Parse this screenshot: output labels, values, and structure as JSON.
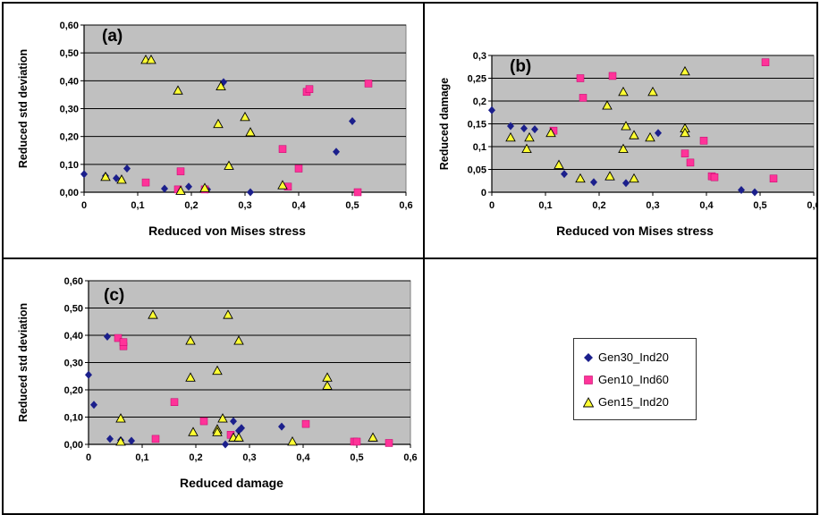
{
  "panels": [
    {
      "id": "a",
      "label": "(a)",
      "xlabel": "Reduced von Mises stress",
      "ylabel": "Reduced std deviation",
      "xticks": [
        "0",
        "0,1",
        "0,2",
        "0,3",
        "0,4",
        "0,5",
        "0,6"
      ],
      "yticks": [
        "0,00",
        "0,10",
        "0,20",
        "0,30",
        "0,40",
        "0,50",
        "0,60"
      ]
    },
    {
      "id": "b",
      "label": "(b)",
      "xlabel": "Reduced von Mises stress",
      "ylabel": "Reduced damage",
      "xticks": [
        "0",
        "0,1",
        "0,2",
        "0,3",
        "0,4",
        "0,5",
        "0,6"
      ],
      "yticks": [
        "0",
        "0,05",
        "0,1",
        "0,15",
        "0,2",
        "0,25",
        "0,3"
      ]
    },
    {
      "id": "c",
      "label": "(c)",
      "xlabel": "Reduced damage",
      "ylabel": "Reduced std deviation",
      "xticks": [
        "0",
        "0,1",
        "0,2",
        "0,3",
        "0,4",
        "0,5",
        "0,6"
      ],
      "yticks": [
        "0,00",
        "0,10",
        "0,20",
        "0,30",
        "0,40",
        "0,50",
        "0,60"
      ]
    }
  ],
  "legend": {
    "entries": [
      {
        "name": "Gen30_Ind20",
        "marker": "diamond",
        "color": "#1b1f8c"
      },
      {
        "name": "Gen10_Ind60",
        "marker": "square",
        "color": "#ff3399"
      },
      {
        "name": "Gen15_Ind20",
        "marker": "triangle",
        "color": "#ffff33"
      }
    ]
  },
  "chart_data": [
    {
      "type": "scatter",
      "panel": "a",
      "title": "",
      "xlabel": "Reduced von Mises stress",
      "ylabel": "Reduced std deviation",
      "xlim": [
        0,
        0.6
      ],
      "ylim": [
        0,
        0.6
      ],
      "grid": true,
      "series": [
        {
          "name": "Gen30_Ind20",
          "points": [
            [
              0,
              0.065
            ],
            [
              0.04,
              0.058
            ],
            [
              0.06,
              0.05
            ],
            [
              0.08,
              0.085
            ],
            [
              0.15,
              0.013
            ],
            [
              0.195,
              0.02
            ],
            [
              0.23,
              0.01
            ],
            [
              0.26,
              0.395
            ],
            [
              0.31,
              0.0
            ],
            [
              0.47,
              0.145
            ],
            [
              0.5,
              0.255
            ]
          ]
        },
        {
          "name": "Gen10_Ind60",
          "points": [
            [
              0.115,
              0.035
            ],
            [
              0.175,
              0.01
            ],
            [
              0.18,
              0.075
            ],
            [
              0.225,
              0.01
            ],
            [
              0.37,
              0.155
            ],
            [
              0.38,
              0.02
            ],
            [
              0.4,
              0.085
            ],
            [
              0.415,
              0.36
            ],
            [
              0.42,
              0.37
            ],
            [
              0.51,
              0.0
            ],
            [
              0.53,
              0.39
            ]
          ]
        },
        {
          "name": "Gen15_Ind20",
          "points": [
            [
              0.04,
              0.055
            ],
            [
              0.07,
              0.045
            ],
            [
              0.115,
              0.475
            ],
            [
              0.125,
              0.475
            ],
            [
              0.175,
              0.365
            ],
            [
              0.18,
              0.005
            ],
            [
              0.225,
              0.015
            ],
            [
              0.25,
              0.245
            ],
            [
              0.255,
              0.38
            ],
            [
              0.27,
              0.095
            ],
            [
              0.3,
              0.27
            ],
            [
              0.31,
              0.215
            ],
            [
              0.37,
              0.025
            ]
          ]
        }
      ]
    },
    {
      "type": "scatter",
      "panel": "b",
      "title": "",
      "xlabel": "Reduced von Mises stress",
      "ylabel": "Reduced damage",
      "xlim": [
        0,
        0.6
      ],
      "ylim": [
        0,
        0.3
      ],
      "grid": true,
      "series": [
        {
          "name": "Gen30_Ind20",
          "points": [
            [
              0,
              0.18
            ],
            [
              0.035,
              0.145
            ],
            [
              0.06,
              0.14
            ],
            [
              0.08,
              0.138
            ],
            [
              0.135,
              0.04
            ],
            [
              0.19,
              0.022
            ],
            [
              0.25,
              0.02
            ],
            [
              0.31,
              0.13
            ],
            [
              0.465,
              0.005
            ],
            [
              0.49,
              0.0
            ]
          ]
        },
        {
          "name": "Gen10_Ind60",
          "points": [
            [
              0.115,
              0.135
            ],
            [
              0.165,
              0.25
            ],
            [
              0.17,
              0.207
            ],
            [
              0.225,
              0.255
            ],
            [
              0.36,
              0.085
            ],
            [
              0.37,
              0.065
            ],
            [
              0.395,
              0.113
            ],
            [
              0.41,
              0.035
            ],
            [
              0.415,
              0.033
            ],
            [
              0.51,
              0.285
            ],
            [
              0.525,
              0.03
            ]
          ]
        },
        {
          "name": "Gen15_Ind20",
          "points": [
            [
              0.035,
              0.12
            ],
            [
              0.065,
              0.095
            ],
            [
              0.07,
              0.12
            ],
            [
              0.11,
              0.13
            ],
            [
              0.125,
              0.06
            ],
            [
              0.165,
              0.03
            ],
            [
              0.215,
              0.19
            ],
            [
              0.22,
              0.035
            ],
            [
              0.245,
              0.22
            ],
            [
              0.245,
              0.095
            ],
            [
              0.25,
              0.145
            ],
            [
              0.265,
              0.125
            ],
            [
              0.265,
              0.03
            ],
            [
              0.295,
              0.12
            ],
            [
              0.3,
              0.22
            ],
            [
              0.36,
              0.265
            ],
            [
              0.36,
              0.14
            ],
            [
              0.36,
              0.13
            ]
          ]
        }
      ]
    },
    {
      "type": "scatter",
      "panel": "c",
      "title": "",
      "xlabel": "Reduced damage",
      "ylabel": "Reduced std deviation",
      "xlim": [
        0,
        0.6
      ],
      "ylim": [
        0,
        0.6
      ],
      "grid": true,
      "series": [
        {
          "name": "Gen30_Ind20",
          "points": [
            [
              0,
              0.255
            ],
            [
              0.01,
              0.145
            ],
            [
              0.035,
              0.395
            ],
            [
              0.04,
              0.02
            ],
            [
              0.06,
              0.015
            ],
            [
              0.08,
              0.013
            ],
            [
              0.255,
              0.0
            ],
            [
              0.27,
              0.085
            ],
            [
              0.28,
              0.05
            ],
            [
              0.285,
              0.06
            ],
            [
              0.36,
              0.065
            ]
          ]
        },
        {
          "name": "Gen10_Ind60",
          "points": [
            [
              0.055,
              0.39
            ],
            [
              0.065,
              0.36
            ],
            [
              0.065,
              0.375
            ],
            [
              0.125,
              0.02
            ],
            [
              0.16,
              0.155
            ],
            [
              0.215,
              0.085
            ],
            [
              0.265,
              0.035
            ],
            [
              0.405,
              0.075
            ],
            [
              0.495,
              0.01
            ],
            [
              0.5,
              0.01
            ],
            [
              0.56,
              0.005
            ]
          ]
        },
        {
          "name": "Gen15_Ind20",
          "points": [
            [
              0.06,
              0.01
            ],
            [
              0.06,
              0.095
            ],
            [
              0.12,
              0.475
            ],
            [
              0.19,
              0.245
            ],
            [
              0.19,
              0.38
            ],
            [
              0.195,
              0.045
            ],
            [
              0.24,
              0.27
            ],
            [
              0.24,
              0.055
            ],
            [
              0.24,
              0.045
            ],
            [
              0.25,
              0.095
            ],
            [
              0.26,
              0.475
            ],
            [
              0.27,
              0.025
            ],
            [
              0.28,
              0.38
            ],
            [
              0.28,
              0.025
            ],
            [
              0.38,
              0.01
            ],
            [
              0.445,
              0.245
            ],
            [
              0.445,
              0.215
            ],
            [
              0.53,
              0.025
            ]
          ]
        }
      ]
    }
  ]
}
